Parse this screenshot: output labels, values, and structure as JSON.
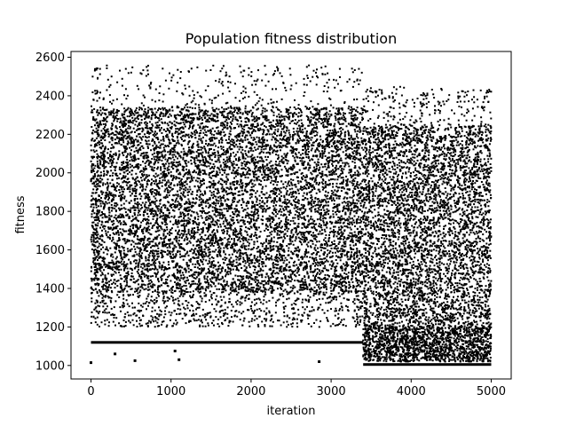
{
  "chart_data": {
    "type": "scatter",
    "title": "Population fitness distribution",
    "xlabel": "iteration",
    "ylabel": "fitness",
    "xlim": [
      -250,
      5250
    ],
    "ylim": [
      930,
      2630
    ],
    "xticks": [
      0,
      1000,
      2000,
      3000,
      4000,
      5000
    ],
    "yticks": [
      1000,
      1200,
      1400,
      1600,
      1800,
      2000,
      2200,
      2400,
      2600
    ],
    "grid": false,
    "legend": "none",
    "marker_color": "#000000",
    "series": [
      {
        "regions": [
          {
            "x": [
              0,
              3400
            ],
            "y": [
              1380,
              2340
            ],
            "count": 9000
          },
          {
            "x": [
              0,
              3400
            ],
            "y": [
              1200,
              1380
            ],
            "count": 700
          },
          {
            "x": [
              0,
              3400
            ],
            "y": [
              2340,
              2560
            ],
            "count": 280
          },
          {
            "x": [
              3400,
              5000
            ],
            "y": [
              1020,
              2250
            ],
            "count": 5200
          },
          {
            "x": [
              3400,
              5000
            ],
            "y": [
              2250,
              2450
            ],
            "count": 200
          },
          {
            "x": [
              3400,
              5000
            ],
            "y": [
              1020,
              1200
            ],
            "count": 800
          }
        ],
        "bands": [
          {
            "x": [
              0,
              3400
            ],
            "y": 1120
          },
          {
            "x": [
              3400,
              5000
            ],
            "y": 1005
          }
        ],
        "outliers": [
          [
            0,
            1015
          ],
          [
            300,
            1060
          ],
          [
            550,
            1025
          ],
          [
            1050,
            1075
          ],
          [
            1100,
            1030
          ],
          [
            2850,
            1020
          ]
        ]
      }
    ]
  }
}
